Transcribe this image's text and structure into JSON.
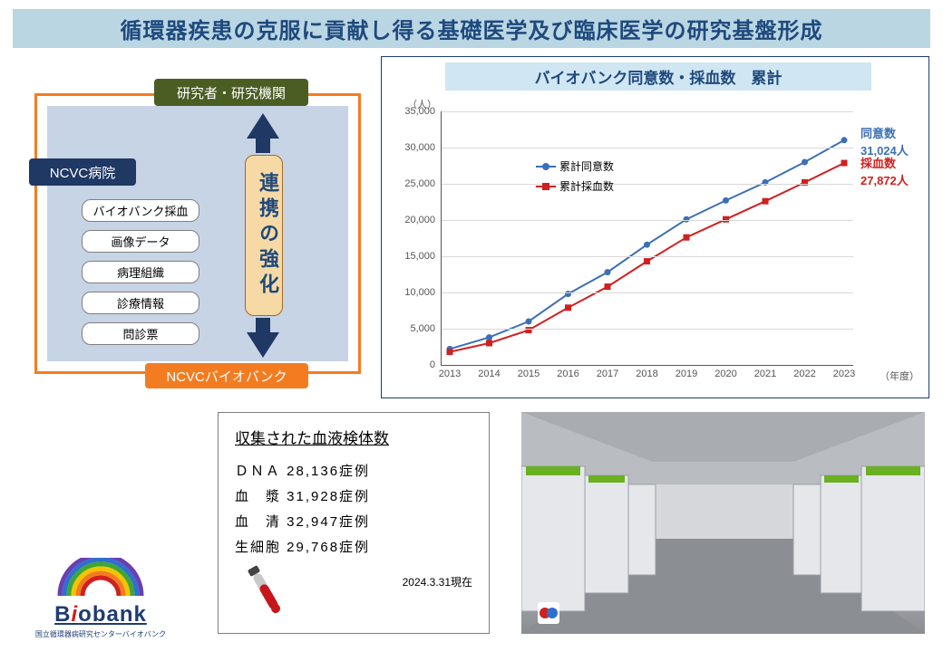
{
  "title": {
    "text": "循環器疾患の克服に貢献し得る基礎医学及び臨床医学の研究基盤形成",
    "bg": "#b9d6e2",
    "color": "#1f497d",
    "fontsize": 24
  },
  "diagram": {
    "outer_border": "#f47c20",
    "inner_bg": "#c6d4e6",
    "top_node": {
      "label": "研究者・研究機関",
      "bg": "#4a5d23",
      "color": "#ffffff"
    },
    "left_node": {
      "label": "NCVC病院",
      "bg": "#1f3864",
      "color": "#ffffff"
    },
    "bottom_node": {
      "label": "NCVCバイオバンク",
      "bg": "#f47c20",
      "color": "#ffffff"
    },
    "center_label": "連携の強化",
    "center_bg": "#f6d9a5",
    "center_border": "#a56b1a",
    "center_color": "#1f497d",
    "arrow_color": "#1f3864",
    "pills": [
      "バイオバンク採血",
      "画像データ",
      "病理組織",
      "診療情報",
      "問診票"
    ]
  },
  "chart": {
    "type": "line",
    "title": "バイオバンク同意数・採血数　累計",
    "title_bg": "#d0e6f2",
    "title_color": "#1f497d",
    "border": "#1f3b73",
    "y_unit": "（人）",
    "x_unit": "（年度）",
    "xlabels": [
      "2013",
      "2014",
      "2015",
      "2016",
      "2017",
      "2018",
      "2019",
      "2020",
      "2021",
      "2022",
      "2023"
    ],
    "ylim": [
      0,
      35000
    ],
    "ytick_step": 5000,
    "grid_color": "#d9d9d9",
    "axis_color": "#555555",
    "series": [
      {
        "name": "累計同意数",
        "color": "#3b6fb6",
        "marker": "circle",
        "values": [
          2200,
          3800,
          6000,
          9800,
          12800,
          16600,
          20100,
          22700,
          25200,
          28000,
          31024
        ],
        "end_label_title": "同意数",
        "end_label_value": "31,024人"
      },
      {
        "name": "累計採血数",
        "color": "#d02020",
        "marker": "square",
        "values": [
          1800,
          3000,
          4800,
          7900,
          10800,
          14300,
          17600,
          20100,
          22600,
          25200,
          27872
        ],
        "end_label_title": "採血数",
        "end_label_value": "27,872人"
      }
    ],
    "label_fontsize": 11,
    "title_fontsize": 17,
    "line_width": 2,
    "marker_size": 7
  },
  "specimens": {
    "title": "収集された血液検体数",
    "rows": [
      {
        "label": "ＤＮＡ",
        "value": "28,136症例"
      },
      {
        "label": "血　漿",
        "value": "31,928症例"
      },
      {
        "label": "血　清",
        "value": "32,947症例"
      },
      {
        "label": "生細胞",
        "value": "29,768症例"
      }
    ],
    "date": "2024.3.31現在",
    "tube_body": "#c8c8c8",
    "tube_fluid": "#c5161d",
    "tube_cap": "#444444"
  },
  "photo": {
    "description": "biobank freezer storage corridor",
    "freezer_body": "#e5e7ea",
    "freezer_accent": "#6ab023",
    "floor": "#8b8e93",
    "ceiling": "#b9bcc0",
    "wall": "#d5d7da"
  },
  "logo": {
    "text_prefix": "B",
    "text_i": "i",
    "text_suffix": "obank",
    "subtext": "国立循環器病研究センターバイオバンク",
    "text_color": "#1f3b73",
    "i_color": "#d02020",
    "rainbow": [
      "#d02020",
      "#f47c20",
      "#f5c400",
      "#3fa535",
      "#2e6fd0",
      "#6a3fb0"
    ]
  }
}
